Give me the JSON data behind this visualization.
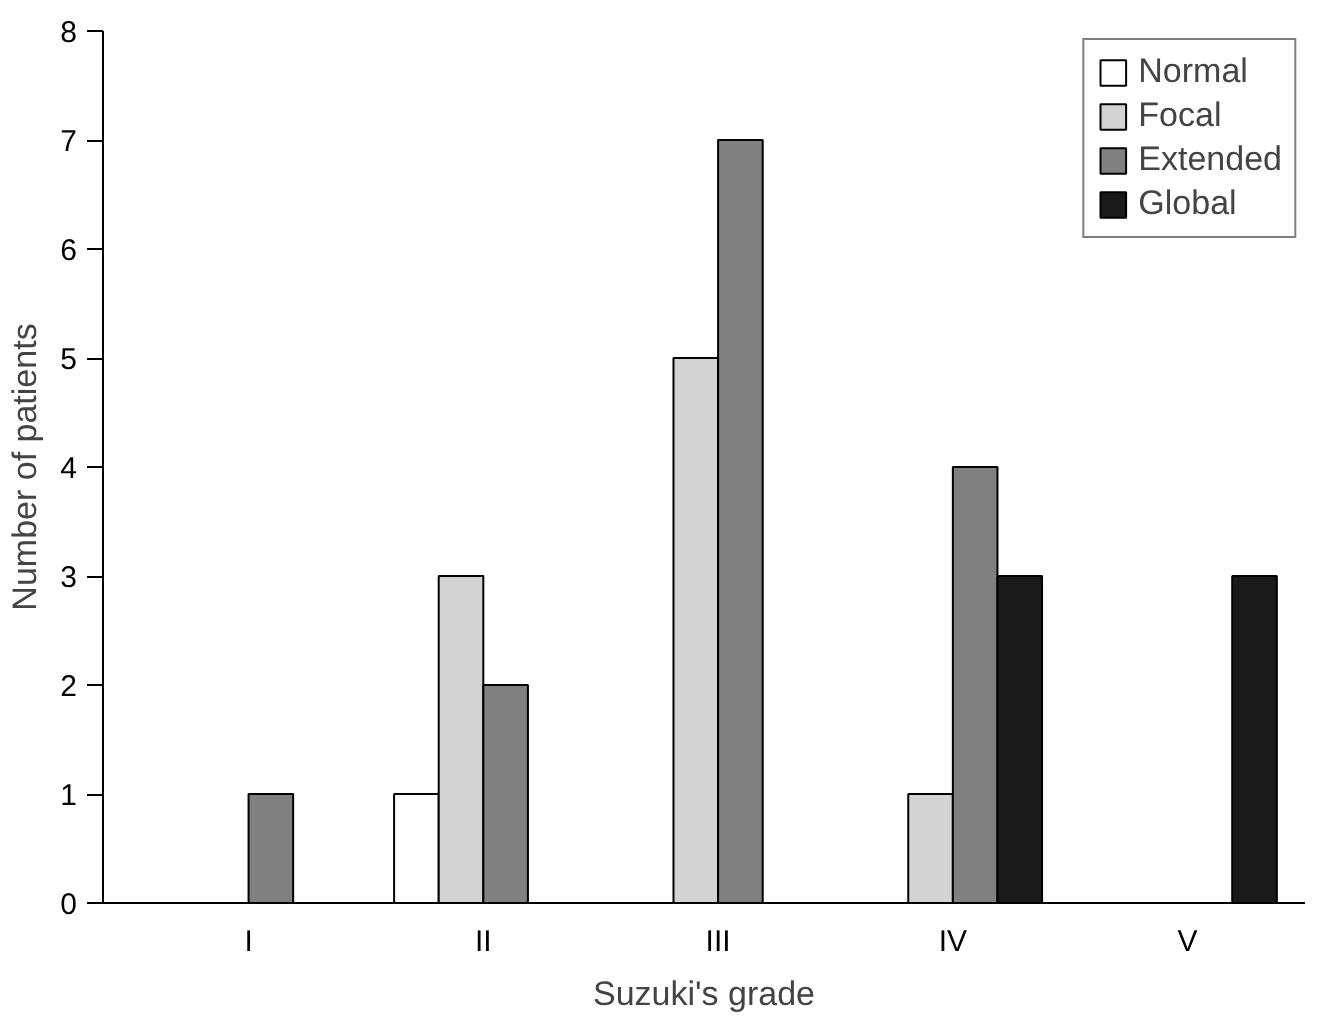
{
  "chart_data": {
    "type": "bar",
    "xlabel": "Suzuki's grade",
    "ylabel": "Number of patients",
    "categories": [
      "I",
      "II",
      "III",
      "IV",
      "V"
    ],
    "series": [
      {
        "name": "Normal",
        "color": "#ffffff",
        "values": [
          null,
          1,
          null,
          null,
          null
        ]
      },
      {
        "name": "Focal",
        "color": "#d3d3d3",
        "values": [
          null,
          3,
          5,
          1,
          null
        ]
      },
      {
        "name": "Extended",
        "color": "#808080",
        "values": [
          1,
          2,
          7,
          4,
          null
        ]
      },
      {
        "name": "Global",
        "color": "#1a1a1a",
        "values": [
          null,
          null,
          null,
          3,
          3
        ]
      }
    ],
    "ylim": [
      0,
      8
    ],
    "yticks": [
      0,
      1,
      2,
      3,
      4,
      5,
      6,
      7,
      8
    ],
    "grid": false,
    "legend": "top right"
  }
}
